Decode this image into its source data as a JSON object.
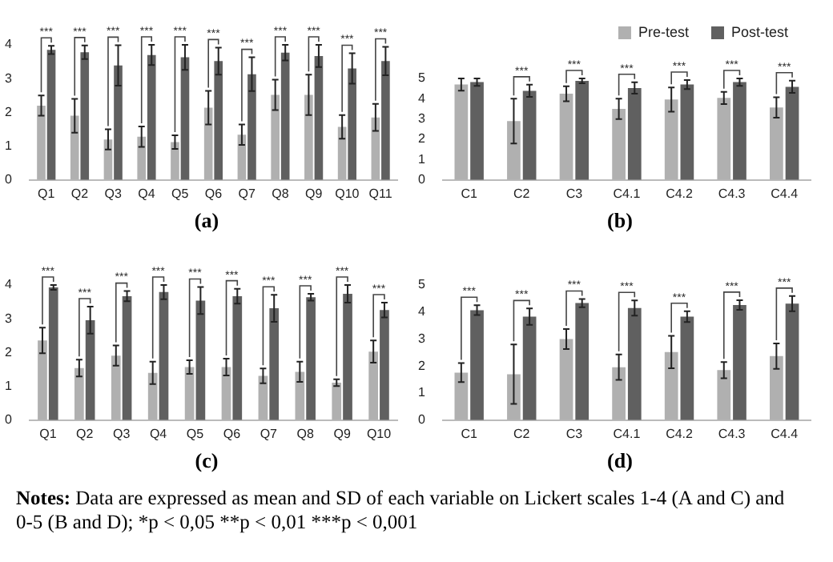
{
  "chart_data": [
    {
      "type": "bar",
      "xlabel": "(a)",
      "categories": [
        "Q1",
        "Q2",
        "Q3",
        "Q4",
        "Q5",
        "Q6",
        "Q7",
        "Q8",
        "Q9",
        "Q10",
        "Q11"
      ],
      "ylim": [
        0,
        4
      ],
      "yticks": [
        0,
        1,
        2,
        3,
        4
      ],
      "grid": false,
      "legend": false,
      "series": [
        {
          "color": "#b0b0b0",
          "values": [
            2.2,
            1.9,
            1.2,
            1.28,
            1.12,
            2.14,
            1.34,
            2.52,
            2.52,
            1.57,
            1.85
          ],
          "errors": [
            0.3,
            0.5,
            0.3,
            0.3,
            0.2,
            0.5,
            0.3,
            0.45,
            0.6,
            0.35,
            0.4
          ]
        },
        {
          "color": "#606060",
          "values": [
            3.85,
            3.78,
            3.39,
            3.7,
            3.63,
            3.52,
            3.13,
            3.77,
            3.67,
            3.3,
            3.52
          ],
          "errors": [
            0.12,
            0.2,
            0.6,
            0.3,
            0.37,
            0.4,
            0.5,
            0.23,
            0.33,
            0.45,
            0.42
          ]
        }
      ],
      "annotations": [
        {
          "text": "***",
          "x": "Q1",
          "y": 3.97
        },
        {
          "text": "***",
          "x": "Q2",
          "y": 3.98
        },
        {
          "text": "***",
          "x": "Q3",
          "y": 3.99
        },
        {
          "text": "***",
          "x": "Q4",
          "y": 4.0
        },
        {
          "text": "***",
          "x": "Q5",
          "y": 4.0
        },
        {
          "text": "***",
          "x": "Q6",
          "y": 3.92
        },
        {
          "text": "***",
          "x": "Q7",
          "y": 3.63
        },
        {
          "text": "***",
          "x": "Q8",
          "y": 4.0
        },
        {
          "text": "***",
          "x": "Q9",
          "y": 4.0
        },
        {
          "text": "***",
          "x": "Q10",
          "y": 3.75
        },
        {
          "text": "***",
          "x": "Q11",
          "y": 3.94
        }
      ]
    },
    {
      "type": "bar",
      "xlabel": "(b)",
      "categories": [
        "C1",
        "C2",
        "C3",
        "C4.1",
        "C4.2",
        "C4.3",
        "C4.4"
      ],
      "ylim": [
        0,
        5
      ],
      "yticks": [
        0,
        1,
        2,
        3,
        4,
        5
      ],
      "grid": false,
      "legend": "top right",
      "series": [
        {
          "name": "Pre-test",
          "color": "#b0b0b0",
          "values": [
            4.7,
            2.9,
            4.25,
            3.5,
            3.96,
            4.04,
            3.57
          ],
          "errors": [
            0.3,
            1.1,
            0.37,
            0.5,
            0.6,
            0.3,
            0.5
          ]
        },
        {
          "name": "Post-test",
          "color": "#606060",
          "values": [
            4.82,
            4.39,
            4.88,
            4.53,
            4.7,
            4.82,
            4.59
          ],
          "errors": [
            0.18,
            0.3,
            0.12,
            0.28,
            0.22,
            0.18,
            0.3
          ]
        }
      ],
      "annotations": [
        {
          "text": "***",
          "x": "C2",
          "y": 4.69
        },
        {
          "text": "***",
          "x": "C3",
          "y": 5.0
        },
        {
          "text": "***",
          "x": "C4.1",
          "y": 4.81
        },
        {
          "text": "***",
          "x": "C4.2",
          "y": 4.92
        },
        {
          "text": "***",
          "x": "C4.3",
          "y": 5.0
        },
        {
          "text": "***",
          "x": "C4.4",
          "y": 4.89
        }
      ]
    },
    {
      "type": "bar",
      "xlabel": "(c)",
      "categories": [
        "Q1",
        "Q2",
        "Q3",
        "Q4",
        "Q5",
        "Q6",
        "Q7",
        "Q8",
        "Q9",
        "Q10"
      ],
      "ylim": [
        0,
        4
      ],
      "yticks": [
        0,
        1,
        2,
        3,
        4
      ],
      "grid": false,
      "legend": false,
      "series": [
        {
          "color": "#b0b0b0",
          "values": [
            2.36,
            1.54,
            1.91,
            1.4,
            1.57,
            1.57,
            1.31,
            1.43,
            1.11,
            2.03
          ],
          "errors": [
            0.38,
            0.25,
            0.3,
            0.33,
            0.2,
            0.25,
            0.22,
            0.3,
            0.1,
            0.33
          ]
        },
        {
          "color": "#606060",
          "values": [
            3.93,
            2.96,
            3.67,
            3.79,
            3.54,
            3.67,
            3.31,
            3.64,
            3.74,
            3.26
          ],
          "errors": [
            0.07,
            0.4,
            0.15,
            0.21,
            0.4,
            0.22,
            0.4,
            0.1,
            0.26,
            0.22
          ]
        }
      ],
      "annotations": [
        {
          "text": "***",
          "x": "Q1",
          "y": 4.0
        },
        {
          "text": "***",
          "x": "Q2",
          "y": 3.36
        },
        {
          "text": "***",
          "x": "Q3",
          "y": 3.82
        },
        {
          "text": "***",
          "x": "Q4",
          "y": 4.0
        },
        {
          "text": "***",
          "x": "Q5",
          "y": 3.94
        },
        {
          "text": "***",
          "x": "Q6",
          "y": 3.89
        },
        {
          "text": "***",
          "x": "Q7",
          "y": 3.71
        },
        {
          "text": "***",
          "x": "Q8",
          "y": 3.74
        },
        {
          "text": "***",
          "x": "Q9",
          "y": 4.0
        },
        {
          "text": "***",
          "x": "Q10",
          "y": 3.48
        }
      ]
    },
    {
      "type": "bar",
      "xlabel": "(d)",
      "categories": [
        "C1",
        "C2",
        "C3",
        "C4.1",
        "C4.2",
        "C4.3",
        "C4.4"
      ],
      "ylim": [
        0,
        5
      ],
      "yticks": [
        0,
        1,
        2,
        3,
        4,
        5
      ],
      "grid": false,
      "legend": false,
      "series": [
        {
          "color": "#b0b0b0",
          "values": [
            1.76,
            1.7,
            3.0,
            1.96,
            2.52,
            1.85,
            2.37
          ],
          "errors": [
            0.35,
            1.1,
            0.37,
            0.47,
            0.6,
            0.3,
            0.47
          ]
        },
        {
          "color": "#606060",
          "values": [
            4.07,
            3.83,
            4.33,
            4.15,
            3.83,
            4.26,
            4.31
          ],
          "errors": [
            0.18,
            0.3,
            0.15,
            0.28,
            0.2,
            0.18,
            0.28
          ]
        }
      ],
      "annotations": [
        {
          "text": "***",
          "x": "C1",
          "y": 4.25
        },
        {
          "text": "***",
          "x": "C2",
          "y": 4.13
        },
        {
          "text": "***",
          "x": "C3",
          "y": 4.48
        },
        {
          "text": "***",
          "x": "C4.1",
          "y": 4.43
        },
        {
          "text": "***",
          "x": "C4.2",
          "y": 4.03
        },
        {
          "text": "***",
          "x": "C4.3",
          "y": 4.44
        },
        {
          "text": "***",
          "x": "C4.4",
          "y": 4.59
        }
      ]
    },
    {
      "type": "other",
      "annotations": [
        "Notes: Data are expressed as mean and SD of each variable on Lickert scales 1-4 (A and C) and 0-5 (B and D); *p < 0,05 **p < 0,01 ***p < 0,001"
      ]
    }
  ]
}
